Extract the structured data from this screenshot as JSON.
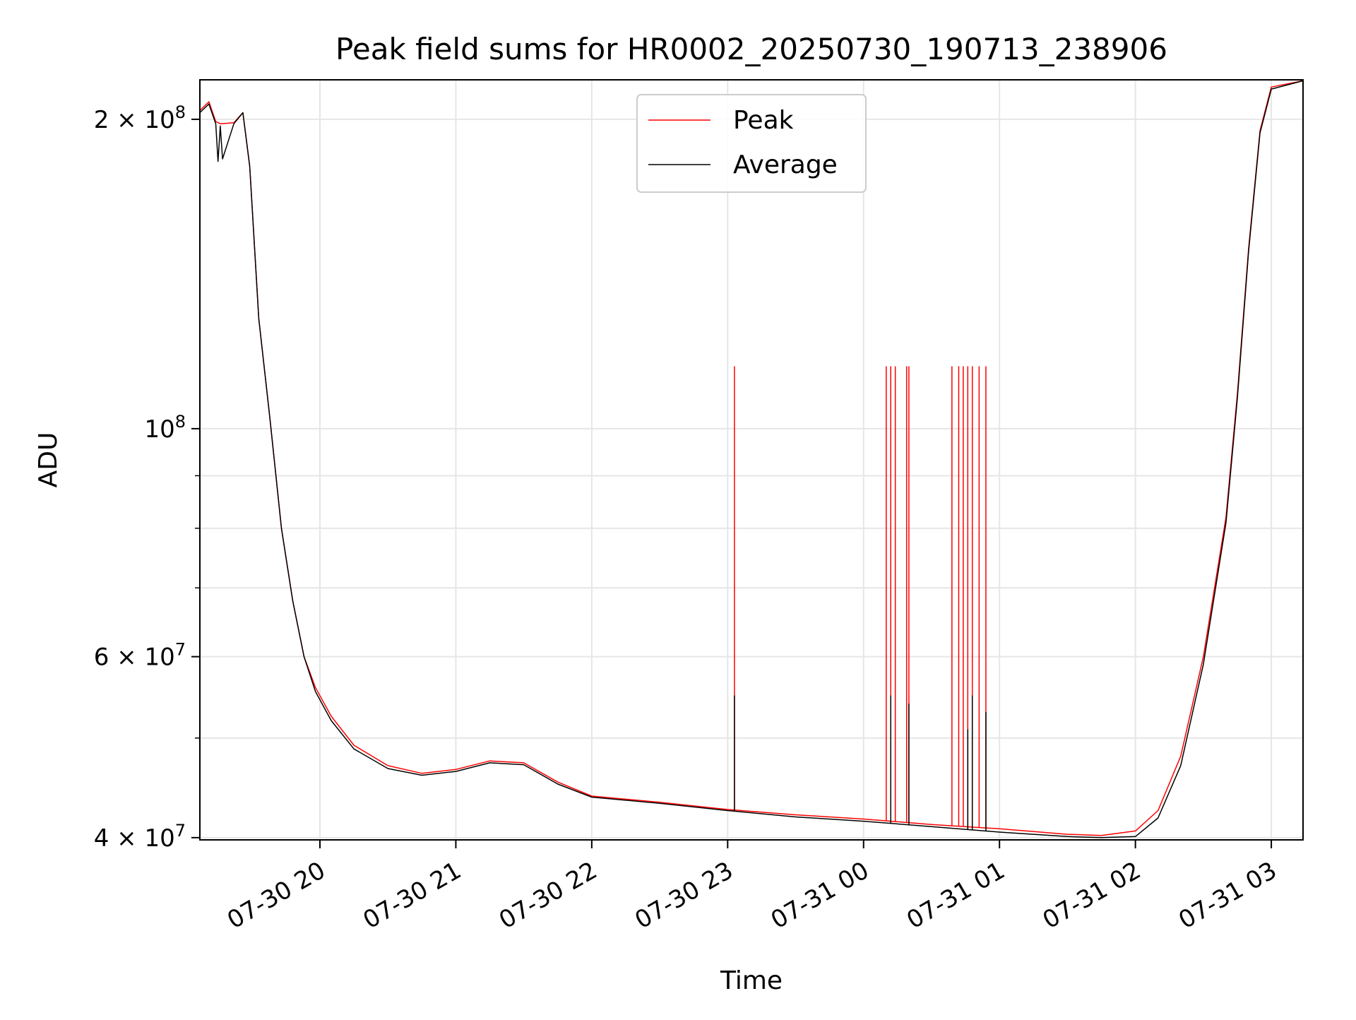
{
  "chart_data": {
    "type": "line",
    "title": "Peak field sums for HR0002_20250730_190713_238906",
    "xlabel": "Time",
    "ylabel": "ADU",
    "y_scale": "log",
    "ylim": [
      39800000,
      218500000
    ],
    "xlim": [
      "2025-07-30 19:07",
      "2025-07-31 03:14"
    ],
    "grid": true,
    "legend_position": "upper-center",
    "x_ticks": [
      {
        "t": "2025-07-30 20:00",
        "label": "07-30 20"
      },
      {
        "t": "2025-07-30 21:00",
        "label": "07-30 21"
      },
      {
        "t": "2025-07-30 22:00",
        "label": "07-30 22"
      },
      {
        "t": "2025-07-30 23:00",
        "label": "07-30 23"
      },
      {
        "t": "2025-07-31 00:00",
        "label": "07-31 00"
      },
      {
        "t": "2025-07-31 01:00",
        "label": "07-31 01"
      },
      {
        "t": "2025-07-31 02:00",
        "label": "07-31 02"
      },
      {
        "t": "2025-07-31 03:00",
        "label": "07-31 03"
      }
    ],
    "y_major_ticks": [
      {
        "value": 40000000,
        "mantissa": "4",
        "exponent": "7"
      },
      {
        "value": 60000000,
        "mantissa": "6",
        "exponent": "7"
      },
      {
        "value": 100000000,
        "mantissa": "",
        "exponent": "8"
      },
      {
        "value": 200000000,
        "mantissa": "2",
        "exponent": "8"
      }
    ],
    "y_minor_gridlines": [
      50000000,
      70000000,
      80000000,
      90000000
    ],
    "series": [
      {
        "name": "Peak",
        "color": "#ff0000",
        "x": [
          "2025-07-30 19:07",
          "2025-07-30 19:11",
          "2025-07-30 19:14",
          "2025-07-30 19:16",
          "2025-07-30 19:22",
          "2025-07-30 19:26",
          "2025-07-30 19:29",
          "2025-07-30 19:33",
          "2025-07-30 19:38",
          "2025-07-30 19:43",
          "2025-07-30 19:48",
          "2025-07-30 19:53",
          "2025-07-30 19:58",
          "2025-07-30 20:05",
          "2025-07-30 20:15",
          "2025-07-30 20:30",
          "2025-07-30 20:45",
          "2025-07-30 21:00",
          "2025-07-30 21:15",
          "2025-07-30 21:30",
          "2025-07-30 21:45",
          "2025-07-30 22:00",
          "2025-07-30 22:30",
          "2025-07-30 23:00",
          "2025-07-30 23:30",
          "2025-07-31 00:00",
          "2025-07-31 00:30",
          "2025-07-31 01:00",
          "2025-07-31 01:30",
          "2025-07-31 01:45",
          "2025-07-31 02:00",
          "2025-07-31 02:10",
          "2025-07-31 02:20",
          "2025-07-31 02:30",
          "2025-07-31 02:40",
          "2025-07-31 02:45",
          "2025-07-31 02:50",
          "2025-07-31 02:55",
          "2025-07-31 03:00",
          "2025-07-31 03:14"
        ],
        "values": [
          204000000,
          208000000,
          199000000,
          198000000,
          198500000,
          203000000,
          180000000,
          128000000,
          102000000,
          80000000,
          68000000,
          60000000,
          56000000,
          52500000,
          49200000,
          47000000,
          46200000,
          46600000,
          47500000,
          47300000,
          45300000,
          43900000,
          43300000,
          42600000,
          42100000,
          41700000,
          41200000,
          40800000,
          40300000,
          40200000,
          40600000,
          42500000,
          48000000,
          60000000,
          82000000,
          108000000,
          150000000,
          195000000,
          215000000,
          218000000
        ],
        "spikes": [
          {
            "t": "2025-07-30 23:03",
            "value": 115000000
          },
          {
            "t": "2025-07-31 00:10",
            "value": 115000000
          },
          {
            "t": "2025-07-31 00:12",
            "value": 115000000
          },
          {
            "t": "2025-07-31 00:14",
            "value": 115000000
          },
          {
            "t": "2025-07-31 00:19",
            "value": 115000000
          },
          {
            "t": "2025-07-31 00:20",
            "value": 115000000
          },
          {
            "t": "2025-07-31 00:39",
            "value": 115000000
          },
          {
            "t": "2025-07-31 00:42",
            "value": 115000000
          },
          {
            "t": "2025-07-31 00:44",
            "value": 115000000
          },
          {
            "t": "2025-07-31 00:46",
            "value": 115000000
          },
          {
            "t": "2025-07-31 00:48",
            "value": 115000000
          },
          {
            "t": "2025-07-31 00:51",
            "value": 115000000
          },
          {
            "t": "2025-07-31 00:54",
            "value": 115000000
          }
        ]
      },
      {
        "name": "Average",
        "color": "#000000",
        "x": [
          "2025-07-30 19:07",
          "2025-07-30 19:11",
          "2025-07-30 19:14",
          "2025-07-30 19:15",
          "2025-07-30 19:16",
          "2025-07-30 19:17",
          "2025-07-30 19:22",
          "2025-07-30 19:26",
          "2025-07-30 19:29",
          "2025-07-30 19:33",
          "2025-07-30 19:38",
          "2025-07-30 19:43",
          "2025-07-30 19:48",
          "2025-07-30 19:53",
          "2025-07-30 19:58",
          "2025-07-30 20:05",
          "2025-07-30 20:15",
          "2025-07-30 20:30",
          "2025-07-30 20:45",
          "2025-07-30 21:00",
          "2025-07-30 21:15",
          "2025-07-30 21:30",
          "2025-07-30 21:45",
          "2025-07-30 22:00",
          "2025-07-30 22:30",
          "2025-07-30 23:00",
          "2025-07-30 23:30",
          "2025-07-31 00:00",
          "2025-07-31 00:30",
          "2025-07-31 01:00",
          "2025-07-31 01:30",
          "2025-07-31 01:45",
          "2025-07-31 02:00",
          "2025-07-31 02:10",
          "2025-07-31 02:20",
          "2025-07-31 02:30",
          "2025-07-31 02:40",
          "2025-07-31 02:45",
          "2025-07-31 02:50",
          "2025-07-31 02:55",
          "2025-07-31 03:00",
          "2025-07-31 03:14"
        ],
        "values": [
          203000000,
          207000000,
          198000000,
          182000000,
          197000000,
          183000000,
          198000000,
          203000000,
          180000000,
          128000000,
          102000000,
          80000000,
          68000000,
          60000000,
          55500000,
          52000000,
          48800000,
          46700000,
          46000000,
          46400000,
          47300000,
          47100000,
          45100000,
          43800000,
          43200000,
          42500000,
          41900000,
          41500000,
          41000000,
          40500000,
          40100000,
          40000000,
          40100000,
          41800000,
          47000000,
          59000000,
          81000000,
          107000000,
          149000000,
          194000000,
          214000000,
          218000000
        ],
        "spikes": [
          {
            "t": "2025-07-30 23:03",
            "value": 55000000
          },
          {
            "t": "2025-07-31 00:12",
            "value": 55000000
          },
          {
            "t": "2025-07-31 00:20",
            "value": 54000000
          },
          {
            "t": "2025-07-31 00:46",
            "value": 51000000
          },
          {
            "t": "2025-07-31 00:48",
            "value": 55000000
          },
          {
            "t": "2025-07-31 00:54",
            "value": 53000000
          }
        ]
      }
    ]
  }
}
